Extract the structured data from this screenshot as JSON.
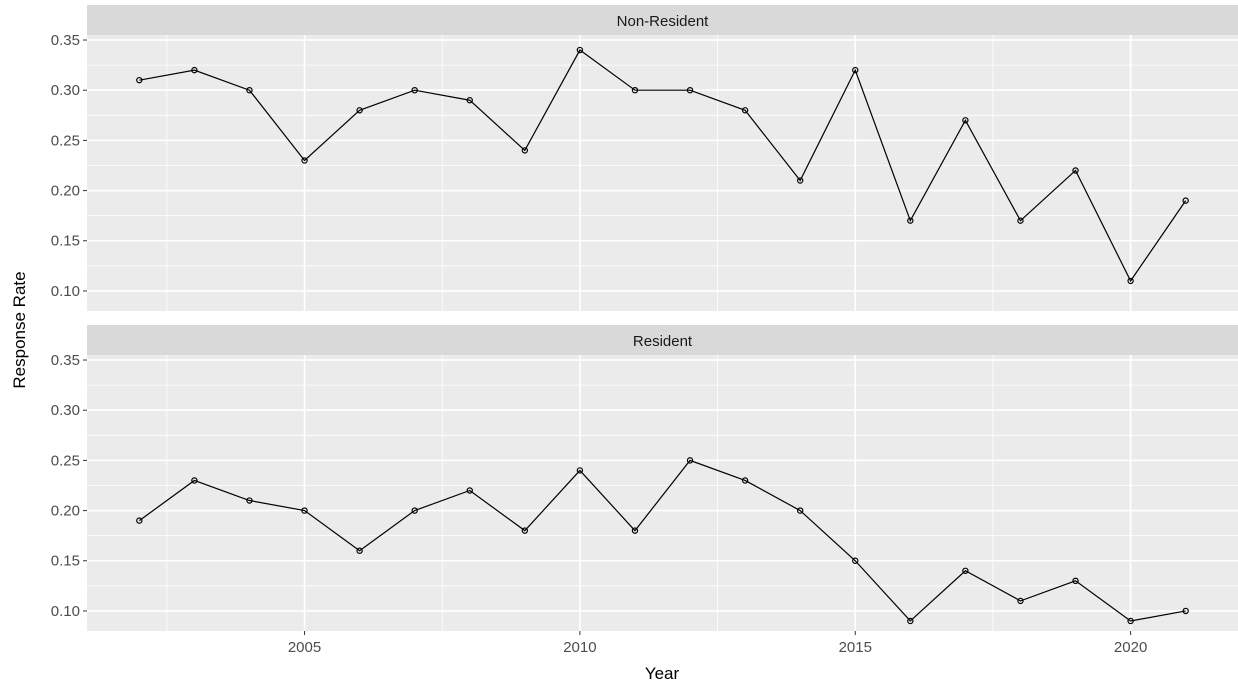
{
  "chart_data": {
    "type": "line",
    "title": "",
    "xlabel": "Year",
    "ylabel": "Response Rate",
    "x": [
      2002,
      2003,
      2004,
      2005,
      2006,
      2007,
      2008,
      2009,
      2010,
      2011,
      2012,
      2013,
      2014,
      2015,
      2016,
      2017,
      2018,
      2019,
      2020,
      2021
    ],
    "xlim": [
      2001.05,
      2021.95
    ],
    "ylim": [
      0.08,
      0.355
    ],
    "x_ticks": [
      2005,
      2010,
      2015,
      2020
    ],
    "x_tick_labels": [
      "2005",
      "2010",
      "2015",
      "2020"
    ],
    "y_ticks": [
      0.1,
      0.15,
      0.2,
      0.25,
      0.3,
      0.35
    ],
    "y_tick_labels": [
      "0.10",
      "0.15",
      "0.20",
      "0.25",
      "0.30",
      "0.35"
    ],
    "grid": true,
    "legend": "none",
    "colors": {
      "panel_bg": "#ebebeb",
      "strip_bg": "#d9d9d9",
      "grid": "#ffffff",
      "line": "#000000",
      "text": "#4d4d4d",
      "title_text": "#000000"
    },
    "facets": [
      {
        "name": "Non-Resident",
        "values": [
          0.31,
          0.32,
          0.3,
          0.23,
          0.28,
          0.3,
          0.29,
          0.24,
          0.34,
          0.3,
          0.3,
          0.28,
          0.21,
          0.32,
          0.17,
          0.27,
          0.17,
          0.22,
          0.11,
          0.19
        ]
      },
      {
        "name": "Resident",
        "values": [
          0.19,
          0.23,
          0.21,
          0.2,
          0.16,
          0.2,
          0.22,
          0.18,
          0.24,
          0.18,
          0.25,
          0.23,
          0.2,
          0.15,
          0.09,
          0.14,
          0.11,
          0.13,
          0.09,
          0.1
        ]
      }
    ]
  }
}
